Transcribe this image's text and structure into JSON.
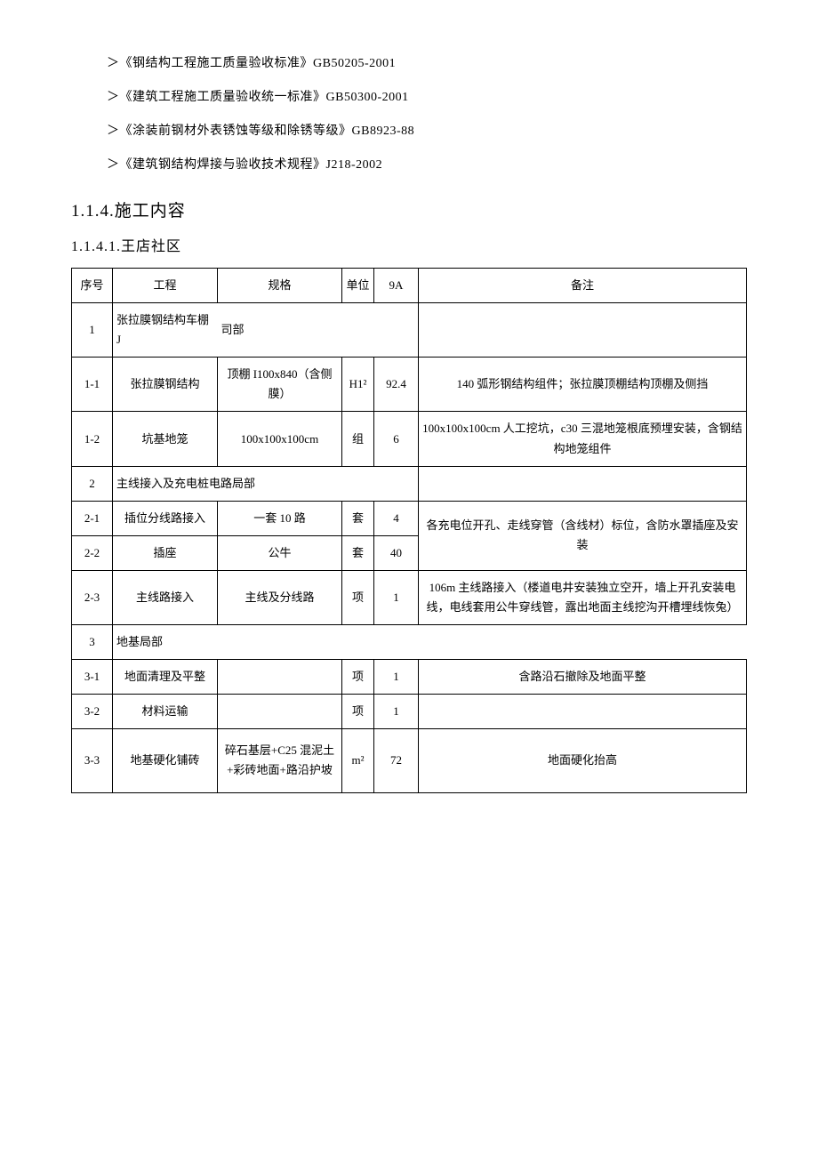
{
  "refs": [
    "＞《钢结构工程施工质量验收标准》GB50205-2001",
    "＞《建筑工程施工质量验收统一标准》GB50300-2001",
    "＞《涂装前钢材外表锈蚀等级和除锈等级》GB8923-88",
    "＞《建筑钢结构焊接与验收技术规程》J218-2002"
  ],
  "section": "1.1.4.施工内容",
  "subsection": "1.1.4.1.王店社区",
  "header": {
    "seq": "序号",
    "proj": "工程",
    "spec": "规格",
    "unit": "单位",
    "qty": "9A",
    "note": "备注"
  },
  "group1": {
    "seq": "1",
    "label": "张拉膜钢结构车棚 J",
    "label2": "司部"
  },
  "r11": {
    "seq": "1-1",
    "proj": "张拉膜钢结构",
    "spec": "顶棚 I100x840（含侧膜）",
    "unit": "H1²",
    "qty": "92.4",
    "note": "140 弧形钢结构组件；张拉膜顶棚结构顶棚及侧挡"
  },
  "r12": {
    "seq": "1-2",
    "proj": "坑基地笼",
    "spec": "100x100x100cm",
    "unit": "组",
    "qty": "6",
    "note": "100x100x100cm 人工挖坑，c30 三混地笼根底预埋安装，含钢结构地笼组件"
  },
  "group2": {
    "seq": "2",
    "label": "主线接入及充电桩电路局部"
  },
  "r21": {
    "seq": "2-1",
    "proj": "插位分线路接入",
    "spec": "一套 10 路",
    "unit": "套",
    "qty": "4",
    "note": "各充电位开孔、走线穿管（含线材）标位，含防水罩插座及安装"
  },
  "r22": {
    "seq": "2-2",
    "proj": "插座",
    "spec": "公牛",
    "unit": "套",
    "qty": "40"
  },
  "r23": {
    "seq": "2-3",
    "proj": "主线路接入",
    "spec": "主线及分线路",
    "unit": "项",
    "qty": "1",
    "note": "106m 主线路接入（楼道电井安装独立空开，墙上开孔安装电线，电线套用公牛穿线管，露出地面主线挖沟开槽埋线恢兔）"
  },
  "group3": {
    "seq": "3",
    "label": "地基局部"
  },
  "r31": {
    "seq": "3-1",
    "proj": "地面清理及平整",
    "spec": "",
    "unit": "项",
    "qty": "1",
    "note": "含路沿石撤除及地面平整"
  },
  "r32": {
    "seq": "3-2",
    "proj": "材料运输",
    "spec": "",
    "unit": "项",
    "qty": "1",
    "note": ""
  },
  "r33": {
    "seq": "3-3",
    "proj": "地基硬化铺砖",
    "spec": "碎石基层+C25 混泥土+彩砖地面+路沿护坡",
    "unit": "m²",
    "qty": "72",
    "note": "地面硬化抬高"
  }
}
